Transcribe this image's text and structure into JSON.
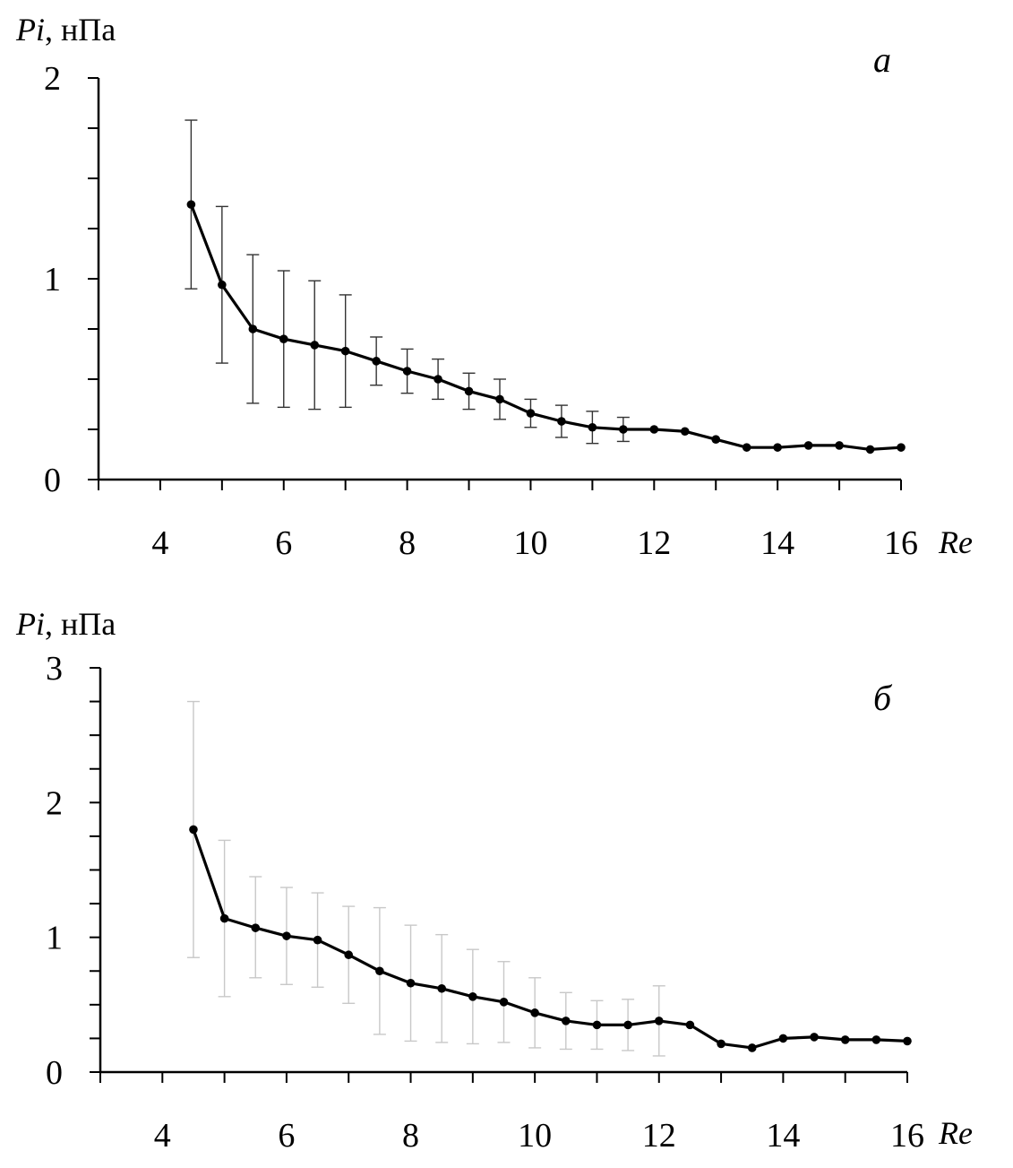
{
  "chart_data": [
    {
      "type": "line",
      "panel_label": "а",
      "ylabel_italic": "Pi",
      "ylabel_rest": ", нПа",
      "xlabel": "Re",
      "xlim": [
        3,
        16
      ],
      "ylim": [
        0,
        2
      ],
      "x_tick_labels": [
        "4",
        "6",
        "8",
        "10",
        "12",
        "14",
        "16"
      ],
      "y_tick_labels": [
        "0",
        "1",
        "2"
      ],
      "error_bar_color": "#333333",
      "series": [
        {
          "x": [
            4.5,
            5,
            5.5,
            6,
            6.5,
            7,
            7.5,
            8,
            8.5,
            9,
            9.5,
            10,
            10.5,
            11,
            11.5,
            12,
            12.5,
            13,
            13.5,
            14,
            14.5,
            15,
            15.5,
            16
          ],
          "y": [
            1.37,
            0.97,
            0.75,
            0.7,
            0.67,
            0.64,
            0.59,
            0.54,
            0.5,
            0.44,
            0.4,
            0.33,
            0.29,
            0.26,
            0.25,
            0.25,
            0.24,
            0.2,
            0.16,
            0.16,
            0.17,
            0.17,
            0.15,
            0.16
          ],
          "err_low": [
            0.95,
            0.58,
            0.38,
            0.36,
            0.35,
            0.36,
            0.47,
            0.43,
            0.4,
            0.35,
            0.3,
            0.26,
            0.21,
            0.18,
            0.19,
            null,
            null,
            null,
            null,
            null,
            null,
            null,
            null,
            null
          ],
          "err_high": [
            1.79,
            1.36,
            1.12,
            1.04,
            0.99,
            0.92,
            0.71,
            0.65,
            0.6,
            0.53,
            0.5,
            0.4,
            0.37,
            0.34,
            0.31,
            null,
            null,
            null,
            null,
            null,
            null,
            null,
            null,
            null
          ]
        }
      ]
    },
    {
      "type": "line",
      "panel_label": "б",
      "ylabel_italic": "Pi",
      "ylabel_rest": ", нПа",
      "xlabel": "Re",
      "xlim": [
        3,
        16
      ],
      "ylim": [
        0,
        3
      ],
      "x_tick_labels": [
        "4",
        "6",
        "8",
        "10",
        "12",
        "14",
        "16"
      ],
      "y_tick_labels": [
        "0",
        "1",
        "2",
        "3"
      ],
      "error_bar_color": "#c8c8c8",
      "series": [
        {
          "x": [
            4.5,
            5,
            5.5,
            6,
            6.5,
            7,
            7.5,
            8,
            8.5,
            9,
            9.5,
            10,
            10.5,
            11,
            11.5,
            12,
            12.5,
            13,
            13.5,
            14,
            14.5,
            15,
            15.5,
            16
          ],
          "y": [
            1.8,
            1.14,
            1.07,
            1.01,
            0.98,
            0.87,
            0.75,
            0.66,
            0.62,
            0.56,
            0.52,
            0.44,
            0.38,
            0.35,
            0.35,
            0.38,
            0.35,
            0.21,
            0.18,
            0.25,
            0.26,
            0.24,
            0.24,
            0.23
          ],
          "err_low": [
            0.85,
            0.56,
            0.7,
            0.65,
            0.63,
            0.51,
            0.28,
            0.23,
            0.22,
            0.21,
            0.22,
            0.18,
            0.17,
            0.17,
            0.16,
            0.12,
            null,
            null,
            null,
            null,
            null,
            null,
            null,
            null
          ],
          "err_high": [
            2.75,
            1.72,
            1.45,
            1.37,
            1.33,
            1.23,
            1.22,
            1.09,
            1.02,
            0.91,
            0.82,
            0.7,
            0.59,
            0.53,
            0.54,
            0.64,
            null,
            null,
            null,
            null,
            null,
            null,
            null,
            null
          ]
        }
      ]
    }
  ]
}
